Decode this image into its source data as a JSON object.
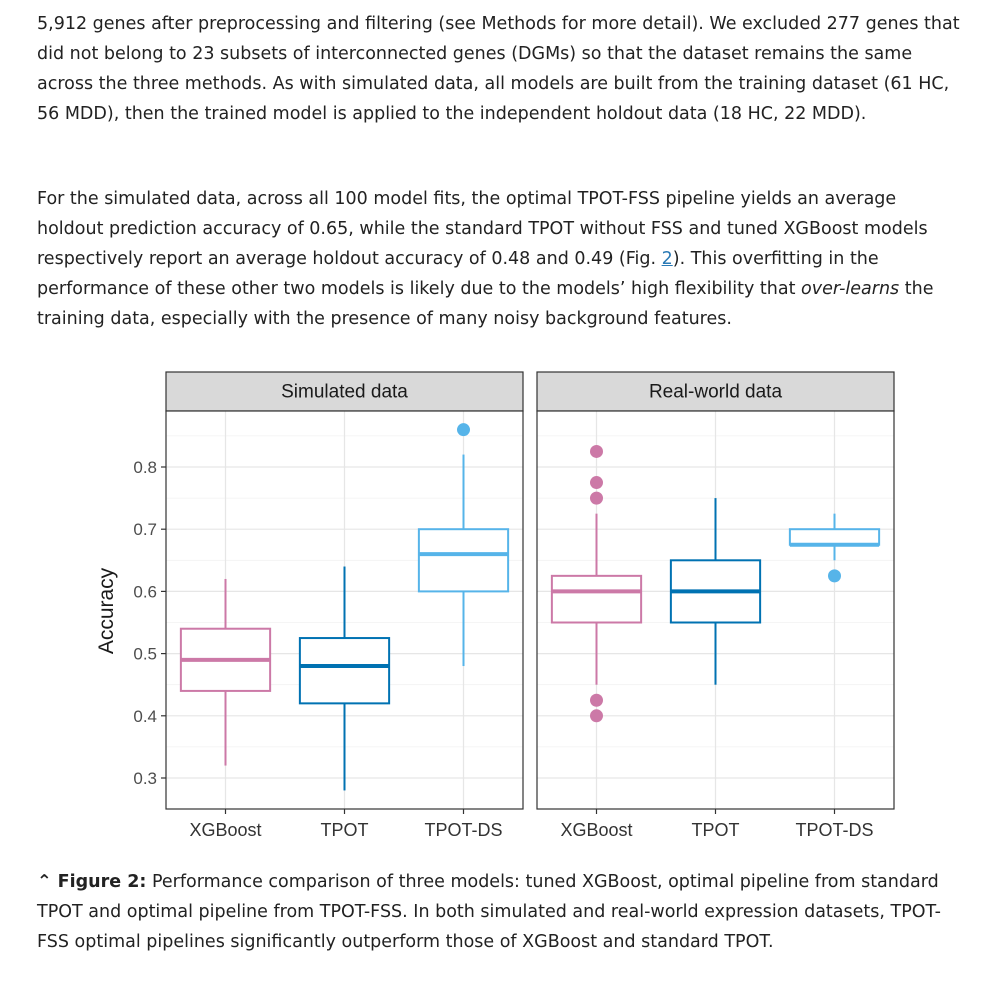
{
  "paragraphs": [
    {
      "segments": [
        {
          "text": "5,912 genes after preprocessing and filtering (see Methods for more detail). We excluded 277 genes that did not belong to 23 subsets of interconnected genes (DGMs) so that the dataset remains the same across the three methods. As with simulated data, all models are built from the training dataset (61 HC, 56 MDD), then the trained model is applied to the independent holdout data (18 HC, 22 MDD)."
        }
      ]
    },
    {
      "segments": [
        {
          "text": "For the simulated data, across all 100 model fits, the optimal TPOT-FSS pipeline yields an average holdout prediction accuracy of 0.65, while the standard TPOT without FSS and tuned XGBoost models respectively report an average holdout accuracy of 0.48 and 0.49 (Fig. "
        },
        {
          "text": "2",
          "link": true
        },
        {
          "text": "). This overfitting in the performance of these other two models is likely due to the models’ high flexibility that "
        },
        {
          "text": "over-learns",
          "italic": true
        },
        {
          "text": " the training data, especially with the presence of many noisy background features."
        }
      ]
    }
  ],
  "chart_data": {
    "type": "boxplot",
    "ylabel": "Accuracy",
    "ylim": [
      0.27,
      0.88
    ],
    "yticks": [
      0.3,
      0.4,
      0.5,
      0.6,
      0.7,
      0.8
    ],
    "ytick_labels": [
      "0.3",
      "0.4",
      "0.5",
      "0.6",
      "0.7",
      "0.8"
    ],
    "categories": [
      "XGBoost",
      "TPOT",
      "TPOT-DS"
    ],
    "colors": {
      "XGBoost": "#cc79a7",
      "TPOT": "#0072b2",
      "TPOT-DS": "#56b4e9"
    },
    "grid": true,
    "panels": [
      {
        "title": "Simulated data",
        "boxes": [
          {
            "category": "XGBoost",
            "whisker_low": 0.32,
            "q1": 0.44,
            "median": 0.49,
            "q3": 0.54,
            "whisker_high": 0.62,
            "outliers": []
          },
          {
            "category": "TPOT",
            "whisker_low": 0.28,
            "q1": 0.42,
            "median": 0.48,
            "q3": 0.525,
            "whisker_high": 0.64,
            "outliers": []
          },
          {
            "category": "TPOT-DS",
            "whisker_low": 0.48,
            "q1": 0.6,
            "median": 0.66,
            "q3": 0.7,
            "whisker_high": 0.82,
            "outliers": [
              0.86
            ]
          }
        ]
      },
      {
        "title": "Real-world data",
        "boxes": [
          {
            "category": "XGBoost",
            "whisker_low": 0.45,
            "q1": 0.55,
            "median": 0.6,
            "q3": 0.625,
            "whisker_high": 0.725,
            "outliers": [
              0.825,
              0.775,
              0.75,
              0.425,
              0.4
            ]
          },
          {
            "category": "TPOT",
            "whisker_low": 0.45,
            "q1": 0.55,
            "median": 0.6,
            "q3": 0.65,
            "whisker_high": 0.75,
            "outliers": []
          },
          {
            "category": "TPOT-DS",
            "whisker_low": 0.65,
            "q1": 0.675,
            "median": 0.675,
            "q3": 0.7,
            "whisker_high": 0.725,
            "outliers": [
              0.625
            ]
          }
        ]
      }
    ]
  },
  "caption": {
    "icon": "double-chevron-up-icon",
    "label": "Figure 2:",
    "text": " Performance comparison of three models: tuned XGBoost, optimal pipeline from standard TPOT and optimal pipeline from TPOT-FSS. In both simulated and real-world expression datasets, TPOT-FSS optimal pipelines significantly outperform those of XGBoost and standard TPOT."
  }
}
